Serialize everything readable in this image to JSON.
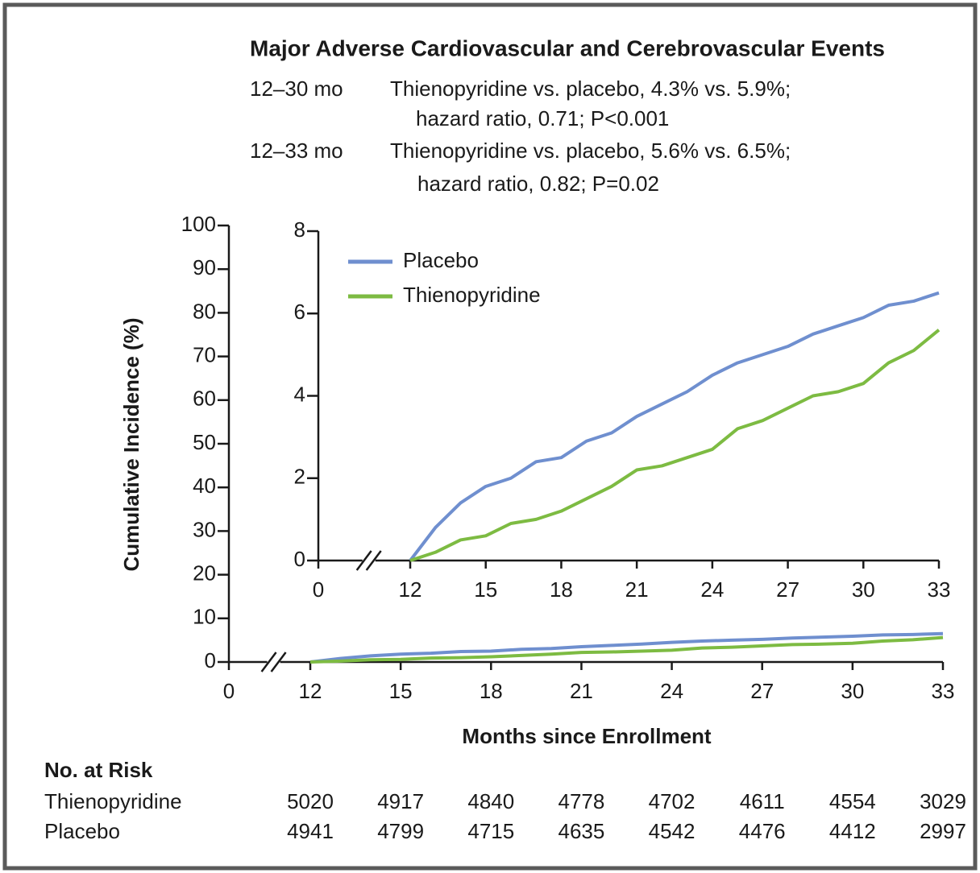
{
  "chart_data": [
    {
      "type": "line",
      "title": "Major Adverse Cardiovascular and Cerebrovascular Events",
      "annotations": [
        {
          "period": "12–30 mo",
          "lines": [
            "Thienopyridine vs. placebo, 4.3% vs. 5.9%;",
            "hazard ratio, 0.71; P<0.001"
          ]
        },
        {
          "period": "12–33 mo",
          "lines": [
            "Thienopyridine vs. placebo, 5.6% vs. 6.5%;",
            "hazard ratio, 0.82; P=0.02"
          ]
        }
      ],
      "y_label": "Cumulative Incidence (%)",
      "x_label": "Months since Enrollment",
      "x": [
        12,
        13,
        14,
        15,
        16,
        17,
        18,
        19,
        20,
        21,
        22,
        23,
        24,
        25,
        26,
        27,
        28,
        29,
        30,
        31,
        32,
        33
      ],
      "series": [
        {
          "color": "#6f8fcf",
          "values": [
            0,
            0.8,
            1.4,
            1.8,
            2.0,
            2.4,
            2.5,
            2.9,
            3.1,
            3.5,
            3.8,
            4.1,
            4.5,
            4.8,
            5.0,
            5.2,
            5.5,
            5.7,
            5.9,
            6.2,
            6.3,
            6.5
          ]
        },
        {
          "color": "#7dbb42",
          "values": [
            0,
            0.2,
            0.5,
            0.6,
            0.9,
            1.0,
            1.2,
            1.5,
            1.8,
            2.2,
            2.3,
            2.5,
            2.7,
            3.2,
            3.4,
            3.7,
            4.0,
            4.1,
            4.3,
            4.8,
            5.1,
            5.6
          ]
        }
      ],
      "xlim": [
        0,
        33
      ],
      "xticks": [
        0,
        12,
        15,
        18,
        21,
        24,
        27,
        30,
        33
      ],
      "axis_break": [
        0,
        12
      ],
      "ylim": [
        0,
        100
      ],
      "yticks": [
        0,
        10,
        20,
        30,
        40,
        50,
        60,
        70,
        80,
        90,
        100
      ]
    },
    {
      "type": "line",
      "x": [
        12,
        13,
        14,
        15,
        16,
        17,
        18,
        19,
        20,
        21,
        22,
        23,
        24,
        25,
        26,
        27,
        28,
        29,
        30,
        31,
        32,
        33
      ],
      "series": [
        {
          "name": "Placebo",
          "color": "#6f8fcf",
          "values": [
            0,
            0.8,
            1.4,
            1.8,
            2.0,
            2.4,
            2.5,
            2.9,
            3.1,
            3.5,
            3.8,
            4.1,
            4.5,
            4.8,
            5.0,
            5.2,
            5.5,
            5.7,
            5.9,
            6.2,
            6.3,
            6.5
          ]
        },
        {
          "name": "Thienopyridine",
          "color": "#7dbb42",
          "values": [
            0,
            0.2,
            0.5,
            0.6,
            0.9,
            1.0,
            1.2,
            1.5,
            1.8,
            2.2,
            2.3,
            2.5,
            2.7,
            3.2,
            3.4,
            3.7,
            4.0,
            4.1,
            4.3,
            4.8,
            5.1,
            5.6
          ]
        }
      ],
      "xlim": [
        0,
        33
      ],
      "xticks": [
        0,
        12,
        15,
        18,
        21,
        24,
        27,
        30,
        33
      ],
      "axis_break": [
        0,
        12
      ],
      "ylim": [
        0,
        8
      ],
      "yticks": [
        0,
        2,
        4,
        6,
        8
      ],
      "legend": "upper left"
    }
  ],
  "risk_table": {
    "title": "No. at Risk",
    "rows": [
      {
        "name": "Thienopyridine",
        "values": [
          5020,
          4917,
          4840,
          4778,
          4702,
          4611,
          4554,
          3029
        ]
      },
      {
        "name": "Placebo",
        "values": [
          4941,
          4799,
          4715,
          4635,
          4542,
          4476,
          4412,
          2997
        ]
      }
    ]
  }
}
